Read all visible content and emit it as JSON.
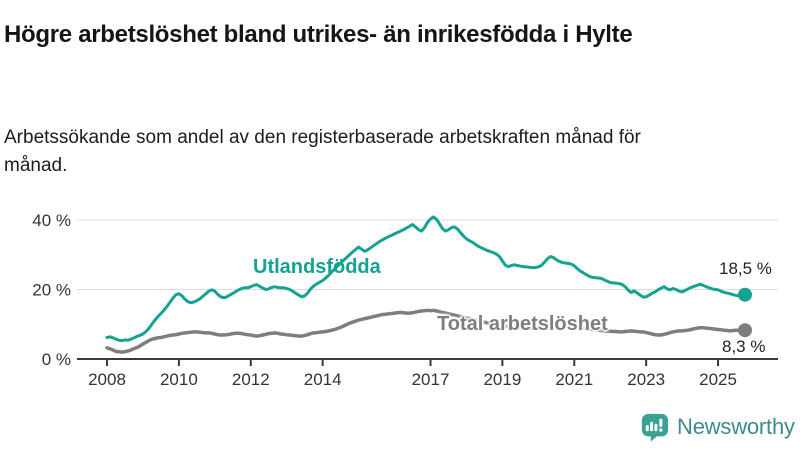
{
  "header": {
    "title": "Högre arbetslöshet bland utrikes- än inrikesfödda i Hylte",
    "subtitle": "Arbetssökande som andel av den registerbaserade arbetskraften månad för månad."
  },
  "footer": {
    "brand": "Newsworthy",
    "logo_color": "#3aa295",
    "text_color": "#3d8b8d",
    "logo_glyph": "bar-chart-exclamation-speech-bubble"
  },
  "chart_data": {
    "type": "line",
    "title": "Högre arbetslöshet bland utrikes- än inrikesfödda i Hylte",
    "subtitle": "Arbetssökande som andel av den registerbaserade arbetskraften månad för månad.",
    "unit": "%",
    "frequency": "monthly",
    "x_start": {
      "year": 2008,
      "month": 1
    },
    "x_end": {
      "year": 2025,
      "month": 10
    },
    "ylim": [
      0,
      43
    ],
    "grid": "horizontal",
    "grid_color": "#dcdcdc",
    "axis_color": "#3a3a3a",
    "tick_text_color": "#333333",
    "y_ticks": [
      {
        "value": 0,
        "label": "0 %"
      },
      {
        "value": 20,
        "label": "20 %"
      },
      {
        "value": 40,
        "label": "40 %"
      }
    ],
    "x_ticks": [
      {
        "year": 2008,
        "label": "2008"
      },
      {
        "year": 2010,
        "label": "2010"
      },
      {
        "year": 2012,
        "label": "2012"
      },
      {
        "year": 2014,
        "label": "2014"
      },
      {
        "year": 2017,
        "label": "2017"
      },
      {
        "year": 2019,
        "label": "2019"
      },
      {
        "year": 2021,
        "label": "2021"
      },
      {
        "year": 2023,
        "label": "2023"
      },
      {
        "year": 2025,
        "label": "2025"
      }
    ],
    "series": [
      {
        "name": "Utlandsfödda",
        "color": "#14a390",
        "end_label": "18,5 %",
        "last_value": 18.5,
        "values": [
          6.2,
          6.4,
          6.1,
          5.7,
          5.4,
          5.3,
          5.5,
          5.4,
          5.7,
          6.1,
          6.5,
          6.8,
          7.2,
          7.9,
          8.8,
          10.0,
          11.2,
          12.2,
          13.1,
          14.0,
          15.1,
          16.3,
          17.5,
          18.5,
          18.8,
          18.2,
          17.2,
          16.5,
          16.2,
          16.4,
          16.8,
          17.3,
          18.0,
          18.8,
          19.5,
          19.9,
          19.5,
          18.6,
          17.9,
          17.6,
          17.9,
          18.4,
          18.9,
          19.4,
          19.9,
          20.3,
          20.5,
          20.5,
          20.8,
          21.2,
          21.4,
          20.9,
          20.4,
          20.0,
          20.2,
          20.6,
          20.8,
          20.6,
          20.5,
          20.5,
          20.3,
          20.0,
          19.5,
          18.9,
          18.4,
          17.9,
          18.2,
          19.0,
          20.2,
          21.0,
          21.6,
          22.1,
          22.6,
          23.3,
          24.1,
          25.0,
          25.9,
          26.8,
          27.6,
          28.4,
          29.2,
          30.0,
          30.8,
          31.5,
          32.2,
          31.6,
          31.0,
          31.4,
          32.0,
          32.6,
          33.2,
          33.8,
          34.3,
          34.8,
          35.2,
          35.6,
          36.0,
          36.4,
          36.8,
          37.2,
          37.7,
          38.2,
          38.7,
          38.0,
          37.2,
          36.8,
          37.8,
          39.3,
          40.3,
          40.9,
          40.2,
          38.9,
          37.5,
          36.8,
          37.2,
          37.8,
          38.0,
          37.4,
          36.4,
          35.4,
          34.6,
          34.0,
          33.6,
          33.0,
          32.4,
          32.0,
          31.6,
          31.2,
          30.9,
          30.6,
          30.2,
          29.5,
          28.2,
          27.0,
          26.6,
          26.9,
          27.1,
          26.9,
          26.7,
          26.6,
          26.5,
          26.4,
          26.3,
          26.3,
          26.5,
          26.9,
          27.8,
          28.8,
          29.5,
          29.2,
          28.6,
          28.1,
          27.8,
          27.6,
          27.5,
          27.3,
          26.8,
          26.0,
          25.3,
          24.8,
          24.3,
          23.8,
          23.5,
          23.4,
          23.3,
          23.2,
          22.8,
          22.4,
          22.0,
          21.9,
          21.8,
          21.7,
          21.4,
          20.8,
          19.8,
          19.1,
          19.6,
          19.0,
          18.4,
          17.8,
          17.9,
          18.4,
          18.9,
          19.3,
          19.9,
          20.4,
          20.8,
          20.2,
          19.9,
          20.3,
          20.0,
          19.5,
          19.3,
          19.7,
          20.2,
          20.6,
          20.9,
          21.2,
          21.5,
          21.2,
          20.8,
          20.5,
          20.2,
          20.0,
          19.9,
          19.5,
          19.2,
          19.0,
          18.8,
          18.5,
          18.3,
          18.2,
          18.3,
          18.5
        ]
      },
      {
        "name": "Total arbetslöshet",
        "color": "#7e7e7e",
        "end_label": "8,3 %",
        "last_value": 8.3,
        "values": [
          3.2,
          2.9,
          2.6,
          2.2,
          2.1,
          2.0,
          2.1,
          2.3,
          2.6,
          3.0,
          3.3,
          3.7,
          4.3,
          4.8,
          5.3,
          5.7,
          5.9,
          6.1,
          6.2,
          6.4,
          6.6,
          6.8,
          6.9,
          7.0,
          7.2,
          7.4,
          7.5,
          7.6,
          7.7,
          7.8,
          7.8,
          7.7,
          7.6,
          7.5,
          7.5,
          7.4,
          7.2,
          7.0,
          6.9,
          6.9,
          7.0,
          7.1,
          7.3,
          7.4,
          7.4,
          7.3,
          7.1,
          7.0,
          6.9,
          6.7,
          6.6,
          6.7,
          6.9,
          7.1,
          7.3,
          7.4,
          7.5,
          7.4,
          7.2,
          7.1,
          7.0,
          6.9,
          6.8,
          6.7,
          6.6,
          6.6,
          6.8,
          7.0,
          7.3,
          7.5,
          7.6,
          7.7,
          7.8,
          7.9,
          8.1,
          8.3,
          8.5,
          8.8,
          9.1,
          9.5,
          9.9,
          10.3,
          10.6,
          10.9,
          11.2,
          11.4,
          11.6,
          11.8,
          12.0,
          12.2,
          12.4,
          12.6,
          12.8,
          12.9,
          13.0,
          13.1,
          13.2,
          13.3,
          13.4,
          13.3,
          13.2,
          13.2,
          13.3,
          13.5,
          13.7,
          13.8,
          13.9,
          14.0,
          13.9,
          14.0,
          13.8,
          13.6,
          13.4,
          13.2,
          13.0,
          12.8,
          12.6,
          12.4,
          12.2,
          12.0,
          11.8,
          11.6,
          11.4,
          11.2,
          11.0,
          10.8,
          10.6,
          10.4,
          10.2,
          10.1,
          9.9,
          9.8,
          9.6,
          9.5,
          9.4,
          9.3,
          9.2,
          9.1,
          9.0,
          9.0,
          8.9,
          8.9,
          8.8,
          8.8,
          9.0,
          9.3,
          9.7,
          10.1,
          10.5,
          10.7,
          10.7,
          10.6,
          10.4,
          10.2,
          10.0,
          9.8,
          9.6,
          9.4,
          9.2,
          9.0,
          8.8,
          8.7,
          8.5,
          8.4,
          8.3,
          8.2,
          8.1,
          8.0,
          8.0,
          7.9,
          7.9,
          7.8,
          7.8,
          7.9,
          8.0,
          8.1,
          8.0,
          7.9,
          7.8,
          7.8,
          7.6,
          7.4,
          7.2,
          7.0,
          6.9,
          6.9,
          7.1,
          7.3,
          7.6,
          7.8,
          8.0,
          8.1,
          8.1,
          8.2,
          8.3,
          8.5,
          8.7,
          8.9,
          9.0,
          9.0,
          8.9,
          8.8,
          8.7,
          8.6,
          8.5,
          8.4,
          8.3,
          8.2,
          8.1,
          8.2,
          8.3,
          8.3,
          8.3,
          8.3
        ]
      }
    ]
  }
}
